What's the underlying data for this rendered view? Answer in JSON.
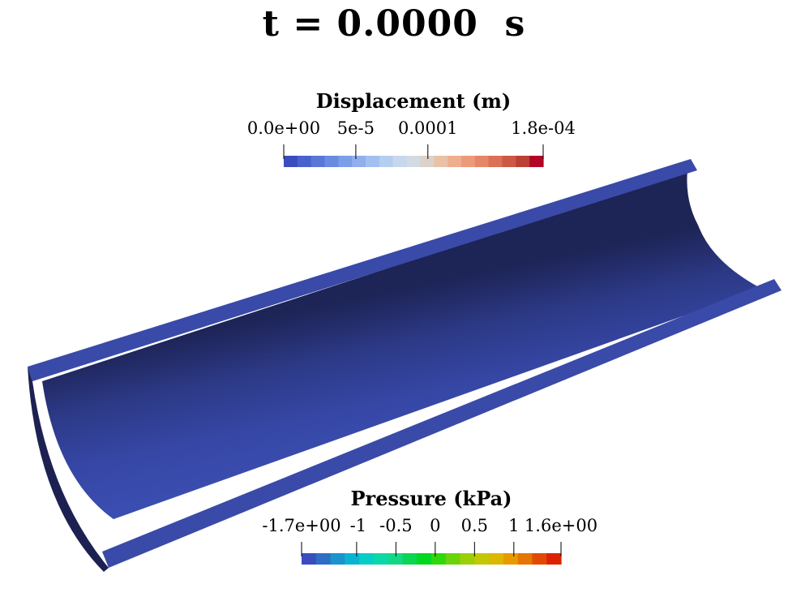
{
  "title": "t = 0.0000  s",
  "displacement_bar": {
    "title": "Displacement (m)",
    "range": [
      0,
      0.00018
    ],
    "labels": [
      {
        "text": "0.0e+00",
        "value": 0
      },
      {
        "text": "5e-5",
        "value": 5e-05
      },
      {
        "text": "0.0001",
        "value": 0.0001
      },
      {
        "text": "1.8e-04",
        "value": 0.00018
      }
    ],
    "colors": [
      "#3b4cc0",
      "#4861cd",
      "#5977d8",
      "#6a8be0",
      "#7c9ee7",
      "#8fb0ec",
      "#a2c0ef",
      "#b5cef0",
      "#c7d8ee",
      "#d2dbe2",
      "#dcd2ca",
      "#e9c1a7",
      "#eeae8f",
      "#ec9b7a",
      "#e58667",
      "#da7055",
      "#cc5945",
      "#bb3f35",
      "#b40426"
    ]
  },
  "pressure_bar": {
    "title": "Pressure (kPa)",
    "range": [
      -1.7,
      1.6
    ],
    "labels": [
      {
        "text": "-1.7e+00",
        "value": -1.7
      },
      {
        "text": "-1",
        "value": -1
      },
      {
        "text": "-0.5",
        "value": -0.5
      },
      {
        "text": "0",
        "value": 0
      },
      {
        "text": "0.5",
        "value": 0.5
      },
      {
        "text": "1",
        "value": 1
      },
      {
        "text": "1.6e+00",
        "value": 1.6
      }
    ],
    "colors": [
      "#3b4cc0",
      "#2c6ec4",
      "#1b93cc",
      "#0ab4d0",
      "#08cdc5",
      "#0bd8a8",
      "#12d886",
      "#0bd553",
      "#05d620",
      "#2fd80d",
      "#6bd30a",
      "#9ccf08",
      "#c3c806",
      "#dbb804",
      "#e89a04",
      "#e67504",
      "#e24a02",
      "#dc2200"
    ]
  },
  "colors": {
    "shell_outer": "#1d2152",
    "shell_edge": "#2a3070",
    "shell_top": "#3646a0",
    "shell_inner_dark": "#222a60",
    "shell_inner_light": "#3a4cac"
  }
}
